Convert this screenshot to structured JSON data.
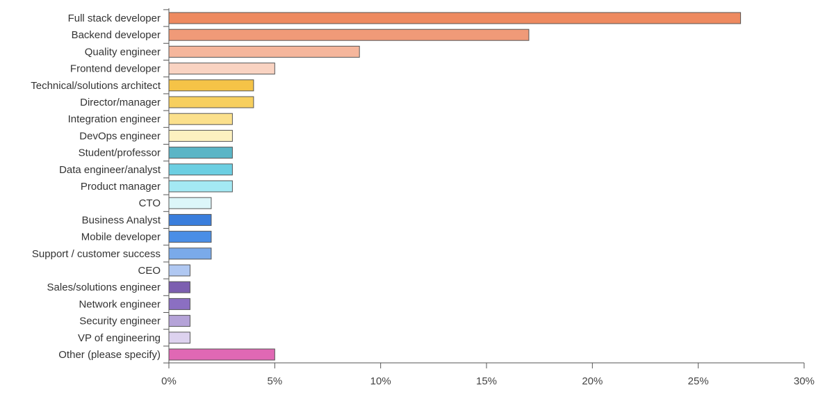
{
  "chart_data": {
    "type": "bar",
    "orientation": "horizontal",
    "title": "",
    "xlabel": "",
    "ylabel": "",
    "xlim": [
      0,
      30
    ],
    "x_ticks": [
      {
        "value": 0,
        "label": "0%"
      },
      {
        "value": 5,
        "label": "5%"
      },
      {
        "value": 10,
        "label": "10%"
      },
      {
        "value": 15,
        "label": "15%"
      },
      {
        "value": 20,
        "label": "20%"
      },
      {
        "value": 25,
        "label": "25%"
      },
      {
        "value": 30,
        "label": "30%"
      }
    ],
    "grid": false,
    "legend": "none",
    "categories": [
      "Full stack developer",
      "Backend developer",
      "Quality engineer",
      "Frontend developer",
      "Technical/solutions architect",
      "Director/manager",
      "Integration engineer",
      "DevOps engineer",
      "Student/professor",
      "Data engineer/analyst",
      "Product manager",
      "CTO",
      "Business Analyst",
      "Mobile developer",
      "Support / customer success",
      "CEO",
      "Sales/solutions engineer",
      "Network engineer",
      "Security engineer",
      "VP of engineering",
      "Other (please specify)"
    ],
    "values": [
      27,
      17,
      9,
      5,
      4,
      4,
      3,
      3,
      3,
      3,
      3,
      2,
      2,
      2,
      2,
      1,
      1,
      1,
      1,
      1,
      5
    ],
    "colors": [
      "#ee8a60",
      "#f09a78",
      "#f5b69c",
      "#f9d3c2",
      "#f5c347",
      "#f7cf5e",
      "#fbe08c",
      "#fdf1c0",
      "#5ab5c6",
      "#6ccfe2",
      "#a4e9f4",
      "#dcf6f9",
      "#3a7edc",
      "#4a8ee6",
      "#7aaaea",
      "#b0c8f2",
      "#7c5fb0",
      "#8b6fc2",
      "#b5a3d8",
      "#ddd2ef",
      "#e068b4"
    ]
  }
}
